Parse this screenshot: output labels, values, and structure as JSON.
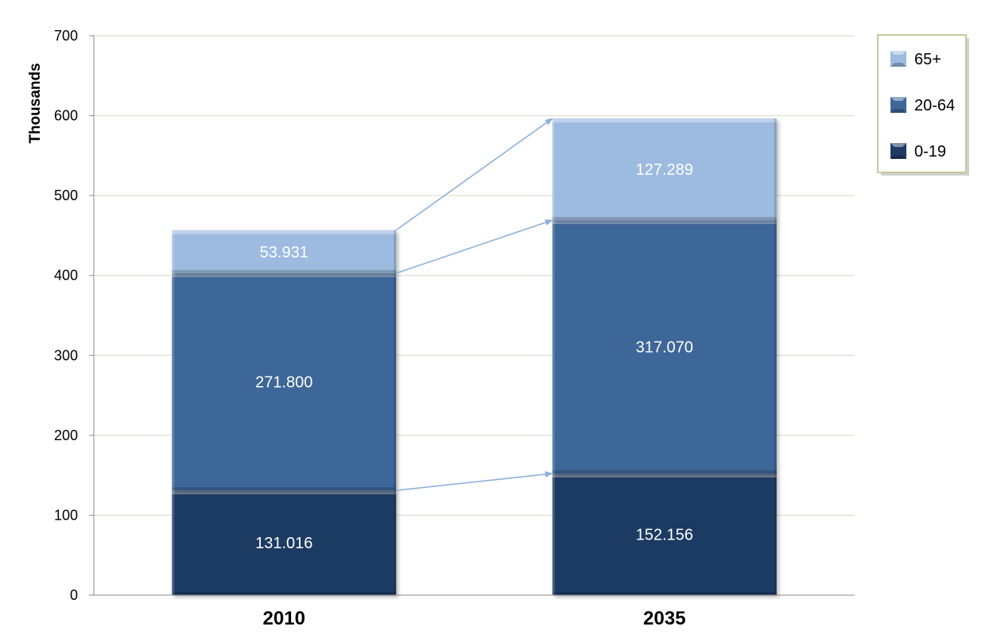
{
  "chart_data": {
    "type": "bar",
    "stacked": true,
    "title": "",
    "xlabel": "",
    "ylabel": "Thousands",
    "categories": [
      "2010",
      "2035"
    ],
    "ylim": [
      0,
      700
    ],
    "yticks": [
      0,
      100,
      200,
      300,
      400,
      500,
      600,
      700
    ],
    "grid": true,
    "legend_position": "top-right",
    "series": [
      {
        "name": "0-19",
        "values": [
          131.016,
          152.156
        ],
        "labels": [
          "131.016",
          "152.156"
        ],
        "color": "#1f3a64"
      },
      {
        "name": "20-64",
        "values": [
          271.8,
          317.07
        ],
        "labels": [
          "271.800",
          "317.070"
        ],
        "color": "#3d6699"
      },
      {
        "name": "65+",
        "values": [
          53.931,
          127.289
        ],
        "labels": [
          "53.931",
          "127.289"
        ],
        "color": "#9dbbe0"
      }
    ],
    "legend_order": [
      "65+",
      "20-64",
      "0-19"
    ],
    "annotations": "arrows connect top of each 2010 segment to the top of the matching 2035 segment"
  }
}
